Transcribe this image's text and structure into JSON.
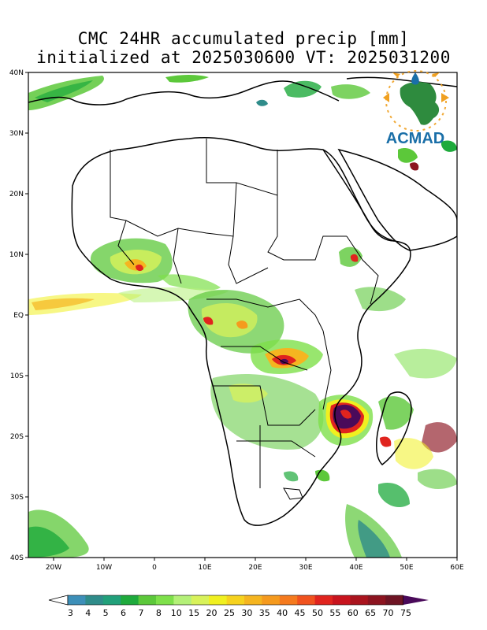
{
  "title": {
    "line1": "CMC 24HR accumulated precip [mm]",
    "line2": "initialized at 2025030600 VT: 2025031200"
  },
  "map": {
    "lat_ticks": [
      "40N",
      "30N",
      "20N",
      "10N",
      "EQ",
      "10S",
      "20S",
      "30S",
      "40S"
    ],
    "lon_ticks": [
      "20W",
      "10W",
      "0",
      "10E",
      "20E",
      "30E",
      "40E",
      "50E",
      "60E"
    ],
    "extent": {
      "lon_min": -25,
      "lon_max": 60,
      "lat_min": -40,
      "lat_max": 40
    }
  },
  "colorbar": {
    "labels": [
      "3",
      "4",
      "5",
      "6",
      "7",
      "8",
      "10",
      "15",
      "20",
      "25",
      "30",
      "35",
      "40",
      "45",
      "50",
      "55",
      "60",
      "65",
      "70",
      "75"
    ],
    "colors": [
      "#3d8fb8",
      "#2f8c8a",
      "#21a07a",
      "#1eaa3c",
      "#5cc83a",
      "#7ee04a",
      "#b4f078",
      "#d8f25a",
      "#f0f020",
      "#f6d21e",
      "#f5b520",
      "#f59a1e",
      "#f57a1e",
      "#f0521e",
      "#e0241e",
      "#c8141e",
      "#aa141e",
      "#8c1420",
      "#6e1424",
      "#4a0a5a"
    ]
  },
  "logo": {
    "text": "ACMAD",
    "primary_color": "#1a6fa8",
    "accent_color": "#f0a020",
    "map_color": "#2e8b3e"
  }
}
